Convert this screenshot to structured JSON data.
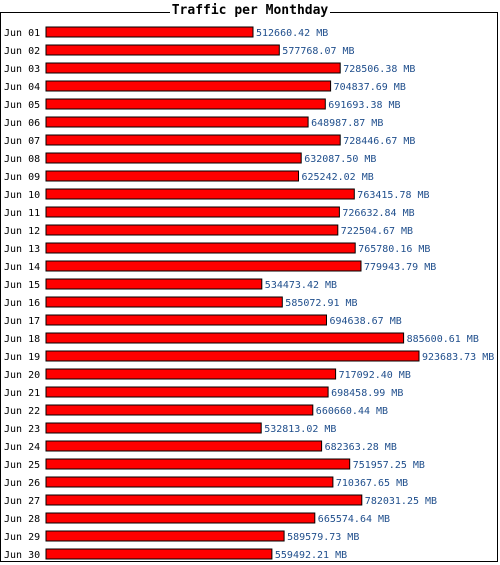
{
  "chart_data": {
    "type": "bar",
    "orientation": "horizontal",
    "title": "Traffic per Monthday",
    "unit": "MB",
    "bar_color": "#ff0000",
    "value_color": "#1f4e8c",
    "categories": [
      "Jun 01",
      "Jun 02",
      "Jun 03",
      "Jun 04",
      "Jun 05",
      "Jun 06",
      "Jun 07",
      "Jun 08",
      "Jun 09",
      "Jun 10",
      "Jun 11",
      "Jun 12",
      "Jun 13",
      "Jun 14",
      "Jun 15",
      "Jun 16",
      "Jun 17",
      "Jun 18",
      "Jun 19",
      "Jun 20",
      "Jun 21",
      "Jun 22",
      "Jun 23",
      "Jun 24",
      "Jun 25",
      "Jun 26",
      "Jun 27",
      "Jun 28",
      "Jun 29",
      "Jun 30"
    ],
    "values": [
      512660.42,
      577768.07,
      728506.38,
      704837.69,
      691693.38,
      648987.87,
      728446.67,
      632087.5,
      625242.02,
      763415.78,
      726632.84,
      722504.67,
      765780.16,
      779943.79,
      534473.42,
      585072.91,
      694638.67,
      885600.61,
      923683.73,
      717092.4,
      698458.99,
      660660.44,
      532813.02,
      682363.28,
      751957.25,
      710367.65,
      782031.25,
      665574.64,
      589579.73,
      559492.21
    ],
    "value_labels": [
      "512660.42 MB",
      "577768.07 MB",
      "728506.38 MB",
      "704837.69 MB",
      "691693.38 MB",
      "648987.87 MB",
      "728446.67 MB",
      "632087.50 MB",
      "625242.02 MB",
      "763415.78 MB",
      "726632.84 MB",
      "722504.67 MB",
      "765780.16 MB",
      "779943.79 MB",
      "534473.42 MB",
      "585072.91 MB",
      "694638.67 MB",
      "885600.61 MB",
      "923683.73 MB",
      "717092.40 MB",
      "698458.99 MB",
      "660660.44 MB",
      "532813.02 MB",
      "682363.28 MB",
      "751957.25 MB",
      "710367.65 MB",
      "782031.25 MB",
      "665574.64 MB",
      "589579.73 MB",
      "559492.21 MB"
    ]
  }
}
